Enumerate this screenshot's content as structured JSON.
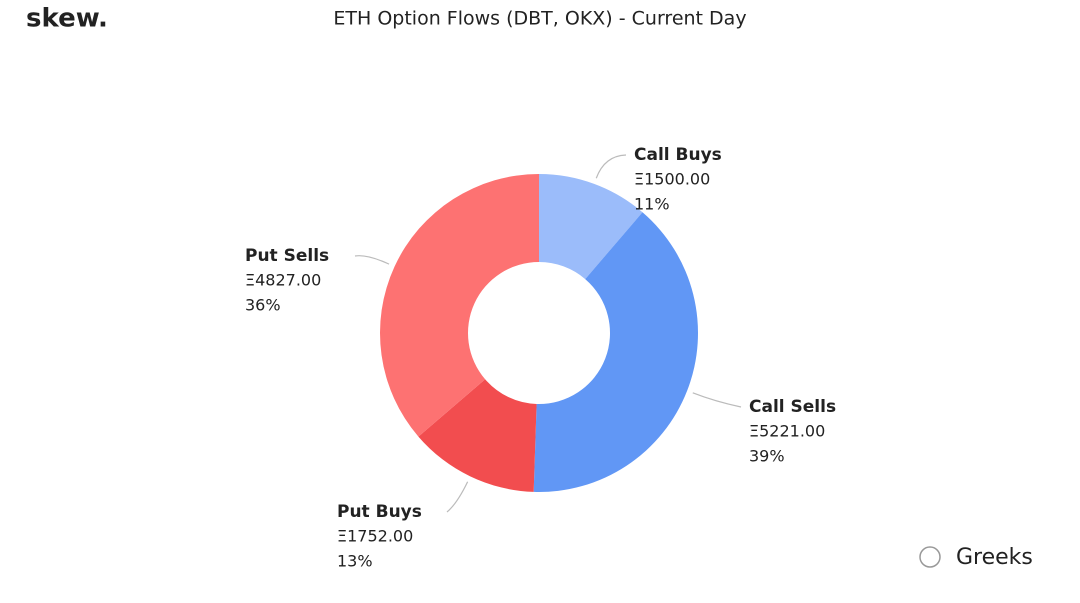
{
  "brand": "skew.",
  "watermark": "Greeks",
  "chart_data": {
    "type": "donut",
    "title": "ETH Option Flows (DBT, OKX) - Current Day",
    "categories": [
      "Call Buys",
      "Call Sells",
      "Put Buys",
      "Put Sells"
    ],
    "values": [
      1500,
      5221,
      1752,
      4827
    ],
    "value_labels": [
      "Ξ1500.00",
      "Ξ5221.00",
      "Ξ1752.00",
      "Ξ4827.00"
    ],
    "percent_labels": [
      "11%",
      "39%",
      "13%",
      "36%"
    ],
    "colors": [
      "#9bbcfa",
      "#6197f5",
      "#f24d4f",
      "#fd7272"
    ]
  }
}
